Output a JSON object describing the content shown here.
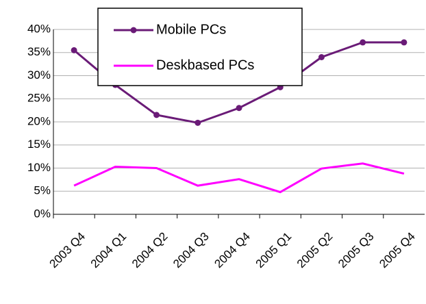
{
  "chart_data": {
    "type": "line",
    "categories": [
      "2003 Q4",
      "2004 Q1",
      "2004 Q2",
      "2004 Q3",
      "2004 Q4",
      "2005 Q1",
      "2005 Q2",
      "2005 Q3",
      "2005 Q4"
    ],
    "series": [
      {
        "name": "Mobile PCs",
        "color": "#6a1b77",
        "markers": true,
        "values": [
          35.5,
          28,
          21.5,
          19.8,
          23,
          27.5,
          34,
          37.2,
          37.2
        ]
      },
      {
        "name": "Deskbased PCs",
        "color": "#ff00ff",
        "markers": false,
        "values": [
          6.2,
          10.3,
          10,
          6.2,
          7.6,
          4.8,
          9.9,
          11,
          8.8
        ]
      }
    ],
    "ylim": [
      0,
      40
    ],
    "yticks": [
      {
        "value": 0,
        "label": "0%"
      },
      {
        "value": 5,
        "label": "5%"
      },
      {
        "value": 10,
        "label": "10%"
      },
      {
        "value": 15,
        "label": "15%"
      },
      {
        "value": 20,
        "label": "20%"
      },
      {
        "value": 25,
        "label": "25%"
      },
      {
        "value": 30,
        "label": "30%"
      },
      {
        "value": 35,
        "label": "35%"
      },
      {
        "value": 40,
        "label": "40%"
      }
    ],
    "grid": true
  }
}
